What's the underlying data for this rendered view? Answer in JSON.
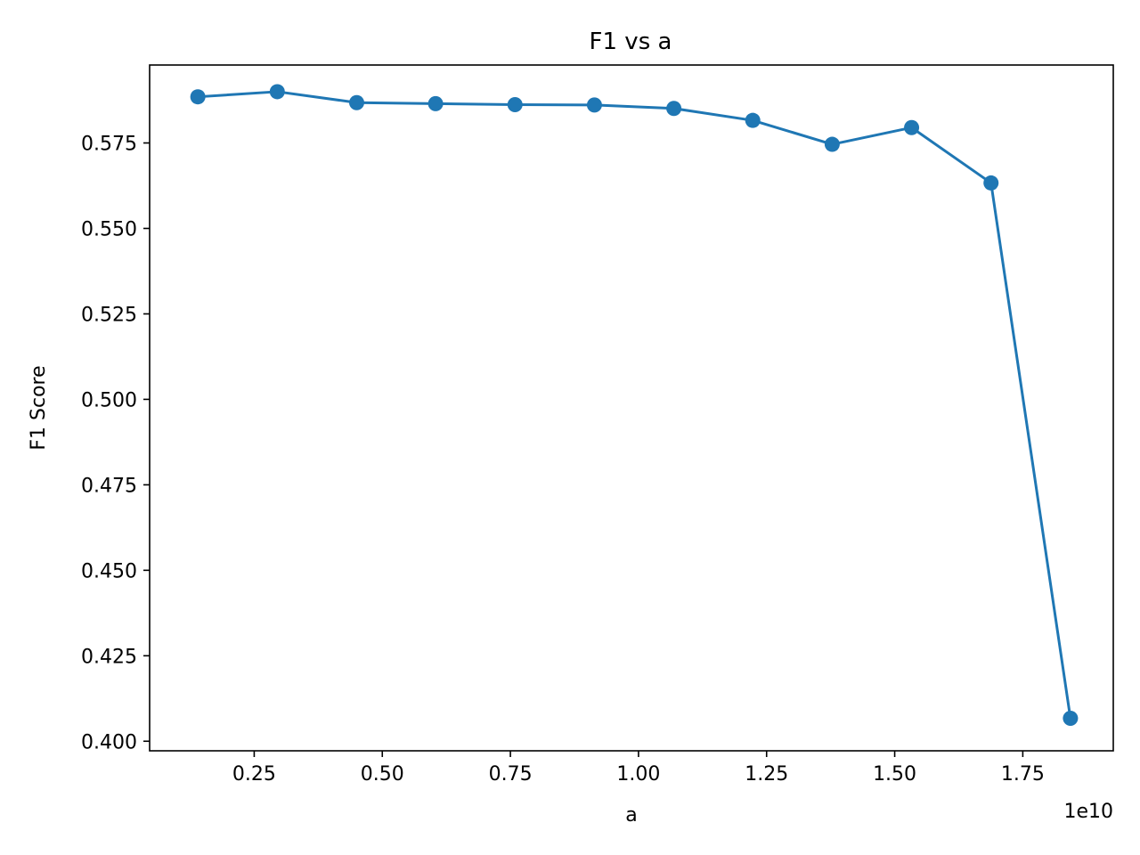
{
  "chart_data": {
    "type": "line",
    "title": "F1 vs a",
    "xlabel": "a",
    "ylabel": "F1 Score",
    "x_offset_text": "1e10",
    "x_scale_factor": 10000000000,
    "xlim": [
      0.0459,
      1.9266
    ],
    "ylim": [
      0.3972,
      0.5978
    ],
    "xticks": [
      0.25,
      0.5,
      0.75,
      1.0,
      1.25,
      1.5,
      1.75
    ],
    "xtick_labels": [
      "0.25",
      "0.50",
      "0.75",
      "1.00",
      "1.25",
      "1.50",
      "1.75"
    ],
    "yticks": [
      0.4,
      0.425,
      0.45,
      0.475,
      0.5,
      0.525,
      0.55,
      0.575
    ],
    "ytick_labels": [
      "0.400",
      "0.425",
      "0.450",
      "0.475",
      "0.500",
      "0.525",
      "0.550",
      "0.575"
    ],
    "grid": false,
    "legend": "none",
    "series": [
      {
        "color": "#1f77b4",
        "marker": "circle",
        "x": [
          0.14,
          0.295,
          0.45,
          0.604,
          0.759,
          0.914,
          1.069,
          1.223,
          1.378,
          1.533,
          1.688,
          1.843
        ],
        "y": [
          0.5885,
          0.59,
          0.5868,
          0.5865,
          0.5862,
          0.5861,
          0.5851,
          0.5816,
          0.5746,
          0.5795,
          0.5633,
          0.4067
        ]
      }
    ]
  }
}
